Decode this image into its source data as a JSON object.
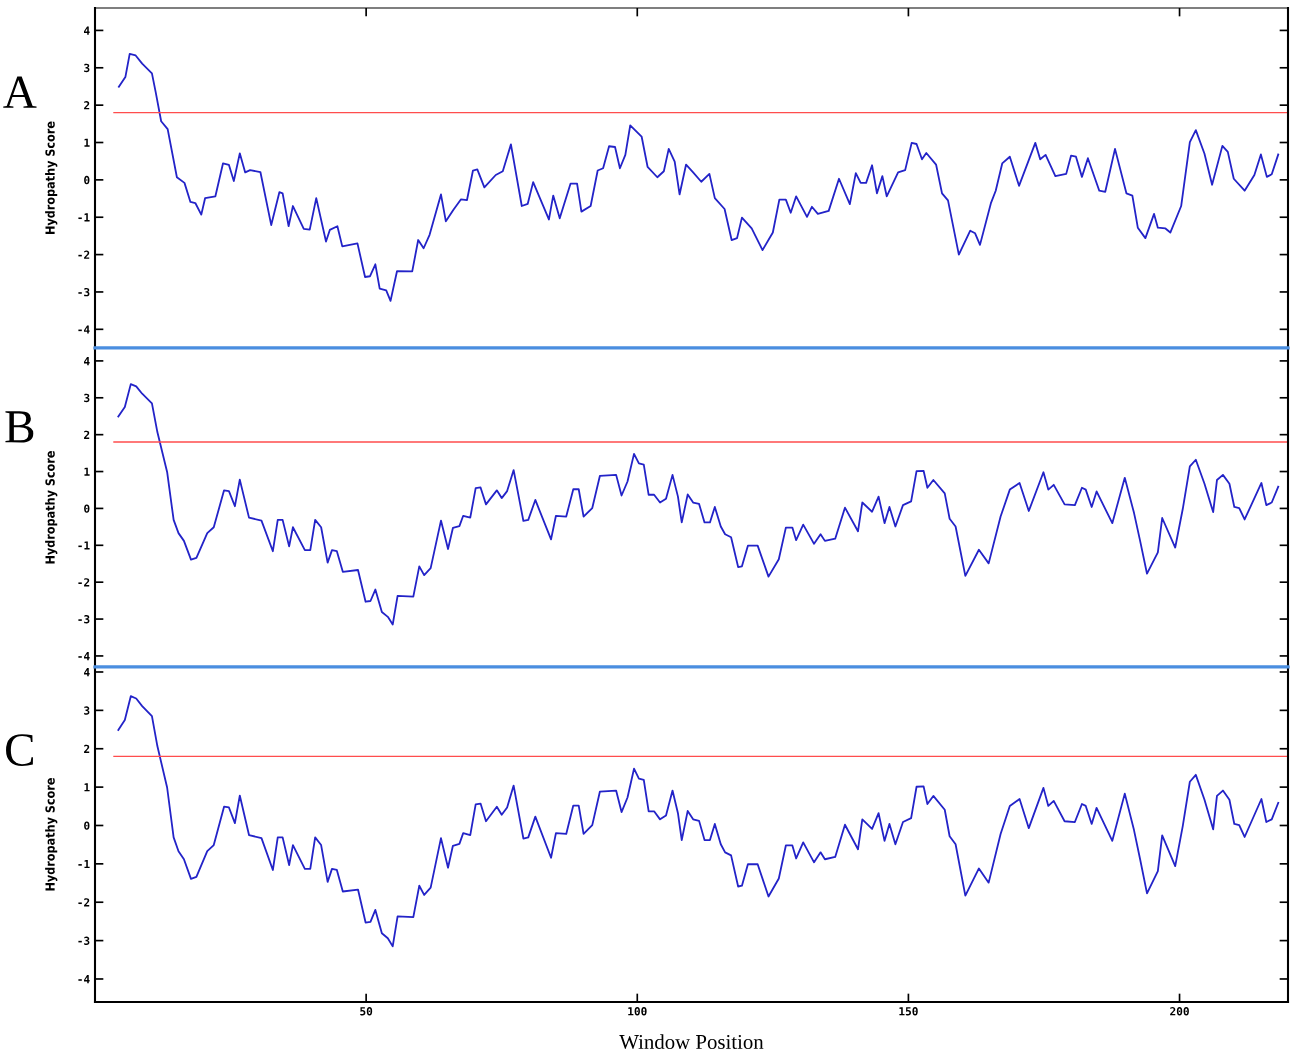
{
  "chart_data": [
    {
      "type": "line",
      "ylabel": "Hydropathy Score",
      "annotations": [
        "A"
      ],
      "tick_labels": "y",
      "xlim": [
        0,
        220
      ],
      "xticks": [
        50,
        100,
        150,
        200
      ],
      "ylim": [
        -4.5,
        4.6
      ],
      "yticks": [
        -4,
        -3,
        -2,
        -1,
        0,
        1,
        2,
        3,
        4
      ],
      "ref_lines": [
        {
          "axis": "y",
          "value": 1.8,
          "color": "#ff4d4d"
        }
      ],
      "series": [
        {
          "color": "#2323c8",
          "x": [
            4.4,
            5.6,
            6.4,
            7.5,
            8.7,
            10.5,
            11.2,
            12.2,
            13.4,
            15.1,
            16.5,
            17.6,
            18.5,
            19.6,
            20.3,
            22.2,
            23.6,
            24.7,
            25.6,
            26.7,
            27.7,
            28.6,
            30.5,
            32.5,
            34.0,
            34.6,
            35.7,
            36.5,
            38.5,
            39.6,
            40.8,
            42.6,
            43.3,
            44.7,
            45.6,
            48.4,
            49.8,
            50.7,
            51.7,
            52.5,
            53.7,
            54.5,
            55.7,
            58.5,
            59.6,
            60.6,
            61.7,
            63.8,
            64.7,
            66.1,
            67.5,
            68.6,
            69.7,
            70.5,
            71.8,
            73.9,
            75.2,
            76.7,
            78.7,
            79.8,
            80.8,
            83.7,
            84.5,
            85.7,
            87.7,
            88.9,
            89.7,
            91.4,
            92.7,
            93.7,
            94.8,
            95.9,
            96.8,
            97.8,
            98.7,
            100.8,
            101.9,
            103.7,
            104.9,
            105.8,
            106.9,
            107.8,
            109.0,
            110.3,
            111.8,
            113.3,
            114.3,
            116.1,
            117.4,
            118.4,
            119.3,
            121.1,
            123.1,
            125.0,
            126.2,
            127.4,
            128.3,
            129.3,
            131.3,
            132.2,
            133.3,
            135.3,
            137.2,
            139.2,
            140.3,
            141.2,
            142.2,
            143.3,
            144.2,
            145.2,
            146.0,
            148.1,
            149.4,
            150.6,
            151.5,
            152.5,
            153.3,
            155.1,
            156.2,
            157.3,
            159.3,
            161.4,
            162.3,
            163.2,
            165.2,
            166.1,
            167.3,
            168.7,
            170.4,
            173.4,
            174.3,
            175.3,
            177.1,
            179.1,
            180.0,
            180.9,
            182.0,
            183.1,
            185.2,
            186.3,
            188.1,
            190.2,
            191.3,
            192.3,
            193.7,
            195.3,
            196.0,
            197.4,
            198.3,
            200.3,
            201.9,
            203.0,
            204.6,
            206.0,
            207.9,
            208.9,
            210.0,
            212.0,
            213.8,
            215.0,
            216.1,
            217.0,
            218.2
          ],
          "values": [
            2.49,
            2.75,
            3.37,
            3.33,
            3.11,
            2.85,
            2.34,
            1.57,
            1.36,
            0.07,
            -0.08,
            -0.59,
            -0.62,
            -0.93,
            -0.49,
            -0.44,
            0.44,
            0.4,
            -0.03,
            0.71,
            0.2,
            0.26,
            0.21,
            -1.21,
            -0.33,
            -0.36,
            -1.24,
            -0.7,
            -1.31,
            -1.33,
            -0.49,
            -1.65,
            -1.34,
            -1.24,
            -1.78,
            -1.7,
            -2.6,
            -2.58,
            -2.26,
            -2.91,
            -2.96,
            -3.24,
            -2.44,
            -2.45,
            -1.61,
            -1.83,
            -1.47,
            -0.39,
            -1.11,
            -0.8,
            -0.52,
            -0.54,
            0.25,
            0.28,
            -0.2,
            0.13,
            0.23,
            0.95,
            -0.7,
            -0.64,
            -0.06,
            -1.06,
            -0.42,
            -1.03,
            -0.1,
            -0.1,
            -0.85,
            -0.7,
            0.25,
            0.31,
            0.9,
            0.88,
            0.31,
            0.67,
            1.46,
            1.16,
            0.35,
            0.07,
            0.23,
            0.83,
            0.49,
            -0.39,
            0.41,
            0.2,
            -0.05,
            0.16,
            -0.49,
            -0.78,
            -1.61,
            -1.56,
            -1.01,
            -1.3,
            -1.88,
            -1.41,
            -0.53,
            -0.53,
            -0.88,
            -0.44,
            -0.99,
            -0.72,
            -0.91,
            -0.83,
            0.03,
            -0.65,
            0.18,
            -0.08,
            -0.08,
            0.39,
            -0.36,
            0.1,
            -0.44,
            0.2,
            0.26,
            0.99,
            0.96,
            0.55,
            0.72,
            0.41,
            -0.36,
            -0.55,
            -2.0,
            -1.36,
            -1.43,
            -1.74,
            -0.63,
            -0.29,
            0.44,
            0.62,
            -0.16,
            0.99,
            0.55,
            0.67,
            0.1,
            0.16,
            0.65,
            0.62,
            0.08,
            0.58,
            -0.29,
            -0.32,
            0.83,
            -0.36,
            -0.42,
            -1.28,
            -1.56,
            -0.91,
            -1.28,
            -1.3,
            -1.41,
            -0.7,
            1.01,
            1.33,
            0.7,
            -0.13,
            0.91,
            0.75,
            0.03,
            -0.29,
            0.13,
            0.68,
            0.08,
            0.15,
            0.68
          ]
        }
      ]
    },
    {
      "type": "line",
      "ylabel": "Hydropathy Score",
      "annotations": [
        "B"
      ],
      "tick_labels": "y",
      "xlim": [
        0,
        220
      ],
      "xticks": [
        50,
        100,
        150,
        200
      ],
      "ylim": [
        -4.3,
        4.35
      ],
      "yticks": [
        -4,
        -3,
        -2,
        -1,
        0,
        1,
        2,
        3,
        4
      ],
      "ref_lines": [
        {
          "axis": "y",
          "value": 1.8,
          "color": "#ff4d4d"
        }
      ],
      "series": [
        {
          "color": "#2323c8",
          "x": [
            4.3,
            5.5,
            6.6,
            7.6,
            8.7,
            10.5,
            11.5,
            13.3,
            14.5,
            15.4,
            16.4,
            17.7,
            18.7,
            20.7,
            21.9,
            23.8,
            24.7,
            25.8,
            26.7,
            28.4,
            30.7,
            32.8,
            33.7,
            34.6,
            35.8,
            36.5,
            38.7,
            39.7,
            40.6,
            41.7,
            42.9,
            43.7,
            44.6,
            45.7,
            48.5,
            49.9,
            50.8,
            51.7,
            52.9,
            54.0,
            54.9,
            55.8,
            58.7,
            59.8,
            60.7,
            61.9,
            63.8,
            65.1,
            66.0,
            67.2,
            67.9,
            69.2,
            70.2,
            71.1,
            72.1,
            74.1,
            75.0,
            76.0,
            77.2,
            79.0,
            79.9,
            81.2,
            84.1,
            85.0,
            86.9,
            88.2,
            89.2,
            90.1,
            91.7,
            93.1,
            96.1,
            97.1,
            98.2,
            99.4,
            100.3,
            101.2,
            102.1,
            103.1,
            104.2,
            105.3,
            106.5,
            107.5,
            108.2,
            109.3,
            110.3,
            111.4,
            112.4,
            113.4,
            114.3,
            115.4,
            116.2,
            117.3,
            118.6,
            119.3,
            120.4,
            122.2,
            124.2,
            126.1,
            127.4,
            128.6,
            129.3,
            130.6,
            132.6,
            133.8,
            134.6,
            136.5,
            138.3,
            140.7,
            141.5,
            143.3,
            144.5,
            145.6,
            146.5,
            147.6,
            149.0,
            150.5,
            151.5,
            152.8,
            153.5,
            154.6,
            156.7,
            157.6,
            158.7,
            160.5,
            163.0,
            164.8,
            167.0,
            168.7,
            170.5,
            172.2,
            174.9,
            175.8,
            176.8,
            178.8,
            180.7,
            182.0,
            182.7,
            183.8,
            184.7,
            187.6,
            189.9,
            191.6,
            192.7,
            194.0,
            196.0,
            196.8,
            199.2,
            200.6,
            201.9,
            203.0,
            204.6,
            206.2,
            206.9,
            208.0,
            209.2,
            210.1,
            211.0,
            212.0,
            215.1,
            216.0,
            217.0,
            218.2
          ],
          "values": [
            2.49,
            2.75,
            3.37,
            3.31,
            3.11,
            2.85,
            2.07,
            0.99,
            -0.31,
            -0.67,
            -0.88,
            -1.39,
            -1.34,
            -0.67,
            -0.51,
            0.49,
            0.47,
            0.06,
            0.78,
            -0.25,
            -0.33,
            -1.16,
            -0.31,
            -0.31,
            -1.03,
            -0.51,
            -1.13,
            -1.13,
            -0.31,
            -0.51,
            -1.47,
            -1.13,
            -1.16,
            -1.72,
            -1.67,
            -2.53,
            -2.51,
            -2.2,
            -2.81,
            -2.94,
            -3.15,
            -2.37,
            -2.39,
            -1.57,
            -1.81,
            -1.62,
            -0.33,
            -1.1,
            -0.53,
            -0.48,
            -0.2,
            -0.25,
            0.55,
            0.57,
            0.11,
            0.49,
            0.28,
            0.47,
            1.04,
            -0.34,
            -0.31,
            0.23,
            -0.84,
            -0.2,
            -0.22,
            0.52,
            0.52,
            -0.22,
            0.01,
            0.88,
            0.91,
            0.35,
            0.73,
            1.48,
            1.22,
            1.19,
            0.37,
            0.37,
            0.16,
            0.26,
            0.91,
            0.32,
            -0.38,
            0.38,
            0.16,
            0.12,
            -0.38,
            -0.38,
            0.04,
            -0.49,
            -0.7,
            -0.78,
            -1.59,
            -1.57,
            -1.01,
            -1.01,
            -1.85,
            -1.38,
            -0.52,
            -0.52,
            -0.86,
            -0.44,
            -0.96,
            -0.7,
            -0.88,
            -0.82,
            0.02,
            -0.62,
            0.16,
            -0.09,
            0.32,
            -0.4,
            0.04,
            -0.49,
            0.09,
            0.19,
            1.01,
            1.02,
            0.56,
            0.77,
            0.41,
            -0.28,
            -0.49,
            -1.83,
            -1.12,
            -1.49,
            -0.22,
            0.51,
            0.69,
            -0.07,
            0.98,
            0.51,
            0.64,
            0.11,
            0.09,
            0.56,
            0.51,
            0.04,
            0.46,
            -0.4,
            0.83,
            -0.12,
            -0.86,
            -1.77,
            -1.19,
            -0.26,
            -1.06,
            -0.01,
            1.14,
            1.32,
            0.67,
            -0.1,
            0.77,
            0.91,
            0.67,
            0.04,
            0.01,
            -0.3,
            0.69,
            0.09,
            0.16,
            0.59
          ]
        }
      ]
    },
    {
      "type": "line",
      "ylabel": "Hydropathy Score",
      "xlabel": "Window Position",
      "annotations": [
        "C"
      ],
      "xlim": [
        0,
        220
      ],
      "xticks": [
        50,
        100,
        150,
        200
      ],
      "ylim": [
        -4.6,
        4.13
      ],
      "yticks": [
        -4,
        -3,
        -2,
        -1,
        0,
        1,
        2,
        3,
        4
      ],
      "ref_lines": [
        {
          "axis": "y",
          "value": 1.8,
          "color": "#ff4d4d"
        }
      ],
      "series": [
        {
          "color": "#2323c8",
          "x": [
            4.3,
            5.5,
            6.6,
            7.6,
            8.7,
            10.5,
            11.5,
            13.3,
            14.5,
            15.4,
            16.4,
            17.7,
            18.7,
            20.7,
            21.9,
            23.8,
            24.7,
            25.8,
            26.7,
            28.4,
            30.7,
            32.8,
            33.7,
            34.6,
            35.8,
            36.5,
            38.7,
            39.7,
            40.6,
            41.7,
            42.9,
            43.7,
            44.6,
            45.7,
            48.5,
            49.9,
            50.8,
            51.7,
            52.9,
            54.0,
            54.9,
            55.8,
            58.7,
            59.8,
            60.7,
            61.9,
            63.8,
            65.1,
            66.0,
            67.2,
            67.9,
            69.2,
            70.2,
            71.1,
            72.1,
            74.1,
            75.0,
            76.0,
            77.2,
            79.0,
            79.9,
            81.2,
            84.1,
            85.0,
            86.9,
            88.2,
            89.2,
            90.1,
            91.7,
            93.1,
            96.1,
            97.1,
            98.2,
            99.4,
            100.3,
            101.2,
            102.1,
            103.1,
            104.2,
            105.3,
            106.5,
            107.5,
            108.2,
            109.3,
            110.3,
            111.4,
            112.4,
            113.4,
            114.3,
            115.4,
            116.2,
            117.3,
            118.6,
            119.3,
            120.4,
            122.2,
            124.2,
            126.1,
            127.4,
            128.6,
            129.3,
            130.6,
            132.6,
            133.8,
            134.6,
            136.5,
            138.3,
            140.7,
            141.5,
            143.3,
            144.5,
            145.6,
            146.5,
            147.6,
            149.0,
            150.5,
            151.5,
            152.8,
            153.5,
            154.6,
            156.7,
            157.6,
            158.7,
            160.5,
            163.0,
            164.8,
            167.0,
            168.7,
            170.5,
            172.2,
            174.9,
            175.8,
            176.8,
            178.8,
            180.7,
            182.0,
            182.7,
            183.8,
            184.7,
            187.6,
            189.9,
            191.6,
            192.7,
            194.0,
            196.0,
            196.8,
            199.2,
            200.6,
            201.9,
            203.0,
            204.6,
            206.2,
            206.9,
            208.0,
            209.2,
            210.1,
            211.0,
            212.0,
            215.1,
            216.0,
            217.0,
            218.2
          ],
          "values": [
            2.49,
            2.75,
            3.37,
            3.31,
            3.11,
            2.85,
            2.07,
            0.99,
            -0.31,
            -0.67,
            -0.88,
            -1.39,
            -1.34,
            -0.67,
            -0.51,
            0.49,
            0.47,
            0.06,
            0.78,
            -0.25,
            -0.33,
            -1.16,
            -0.31,
            -0.31,
            -1.03,
            -0.51,
            -1.13,
            -1.13,
            -0.31,
            -0.51,
            -1.47,
            -1.13,
            -1.16,
            -1.72,
            -1.67,
            -2.53,
            -2.51,
            -2.2,
            -2.81,
            -2.94,
            -3.15,
            -2.37,
            -2.39,
            -1.57,
            -1.81,
            -1.62,
            -0.33,
            -1.1,
            -0.53,
            -0.48,
            -0.2,
            -0.25,
            0.55,
            0.57,
            0.11,
            0.49,
            0.28,
            0.47,
            1.04,
            -0.34,
            -0.31,
            0.23,
            -0.84,
            -0.2,
            -0.22,
            0.52,
            0.52,
            -0.22,
            0.01,
            0.88,
            0.91,
            0.35,
            0.73,
            1.48,
            1.22,
            1.19,
            0.37,
            0.37,
            0.16,
            0.26,
            0.91,
            0.32,
            -0.38,
            0.38,
            0.16,
            0.12,
            -0.38,
            -0.38,
            0.04,
            -0.49,
            -0.7,
            -0.78,
            -1.59,
            -1.57,
            -1.01,
            -1.01,
            -1.85,
            -1.38,
            -0.52,
            -0.52,
            -0.86,
            -0.44,
            -0.96,
            -0.7,
            -0.88,
            -0.82,
            0.02,
            -0.62,
            0.16,
            -0.09,
            0.32,
            -0.4,
            0.04,
            -0.49,
            0.09,
            0.19,
            1.01,
            1.02,
            0.56,
            0.77,
            0.41,
            -0.28,
            -0.49,
            -1.83,
            -1.12,
            -1.49,
            -0.22,
            0.51,
            0.69,
            -0.07,
            0.98,
            0.51,
            0.64,
            0.11,
            0.09,
            0.56,
            0.51,
            0.04,
            0.46,
            -0.4,
            0.83,
            -0.12,
            -0.86,
            -1.77,
            -1.19,
            -0.26,
            -1.06,
            -0.01,
            1.14,
            1.32,
            0.67,
            -0.1,
            0.77,
            0.91,
            0.67,
            0.04,
            0.01,
            -0.3,
            0.69,
            0.09,
            0.16,
            0.59
          ]
        }
      ]
    }
  ]
}
